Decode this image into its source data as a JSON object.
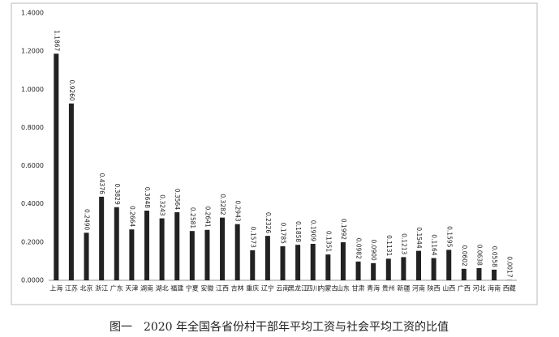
{
  "chart_data": {
    "type": "bar",
    "title": "图一　2020 年全国各省份村干部年平均工资与社会平均工资的比值",
    "categories": [
      "上海",
      "江苏",
      "北京",
      "浙江",
      "广东",
      "天津",
      "湖南",
      "湖北",
      "福建",
      "宁夏",
      "安徽",
      "江西",
      "吉林",
      "重庆",
      "辽宁",
      "云南",
      "黑龙江",
      "四川",
      "内蒙古",
      "山东",
      "甘肃",
      "青海",
      "贵州",
      "新疆",
      "河南",
      "陕西",
      "山西",
      "广西",
      "河北",
      "海南",
      "西藏"
    ],
    "values": [
      1.1867,
      0.926,
      0.249,
      0.4376,
      0.3829,
      0.2664,
      0.3648,
      0.3243,
      0.3564,
      0.2581,
      0.2641,
      0.3282,
      0.2943,
      0.1573,
      0.2326,
      0.1785,
      0.1858,
      0.1909,
      0.1351,
      0.1992,
      0.0982,
      0.09,
      0.1131,
      0.1213,
      0.1544,
      0.1164,
      0.1595,
      0.0602,
      0.0638,
      0.0558,
      0.0017
    ],
    "value_labels": [
      "1.1867",
      "0.9260",
      "0.2490",
      "0.4376",
      "0.3829",
      "0.2664",
      "0.3648",
      "0.3243",
      "0.3564",
      "0.2581",
      "0.2641",
      "0.3282",
      "0.2943",
      "0.1573",
      "0.2326",
      "0.1785",
      "0.1858",
      "0.1909",
      "0.1351",
      "0.1992",
      "0.0982",
      "0.0900",
      "0.1131",
      "0.1213",
      "0.1544",
      "0.1164",
      "0.1595",
      "0.0602",
      "0.0638",
      "0.0558",
      "0.0017"
    ],
    "color": "#222222",
    "ylim": [
      0,
      1.4
    ],
    "yticks": [
      {
        "value": 0,
        "label": "0.0000"
      },
      {
        "value": 0.2,
        "label": "0.2000"
      },
      {
        "value": 0.4,
        "label": "0.4000"
      },
      {
        "value": 0.6,
        "label": "0.6000"
      },
      {
        "value": 0.8,
        "label": "0.8000"
      },
      {
        "value": 1,
        "label": "1.0000"
      },
      {
        "value": 1.2,
        "label": "1.2000"
      },
      {
        "value": 1.4,
        "label": "1.4000"
      }
    ],
    "grid": false
  }
}
